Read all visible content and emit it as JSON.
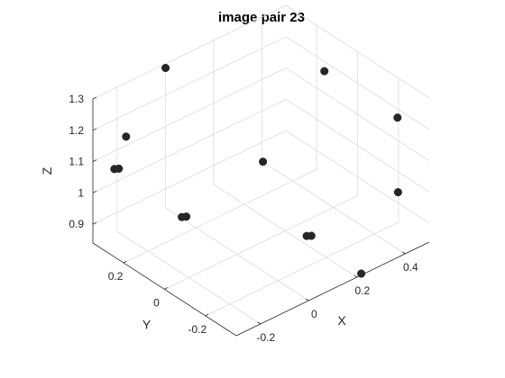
{
  "chart_data": {
    "type": "scatter",
    "title": "image pair 23",
    "xlabel": "X",
    "ylabel": "Y",
    "zlabel": "Z",
    "grid": true,
    "projection": "3d",
    "xlim": [
      -0.3,
      0.5
    ],
    "ylim": [
      -0.35,
      0.35
    ],
    "zlim": [
      0.84,
      1.3
    ],
    "xticks": [
      -0.2,
      0,
      0.2,
      0.4
    ],
    "xtick_labels": [
      "-0.2",
      "0",
      "0.2",
      "0.4"
    ],
    "yticks": [
      -0.2,
      0,
      0.2
    ],
    "ytick_labels": [
      "-0.2",
      "0",
      "0.2"
    ],
    "zticks": [
      0.9,
      1,
      1.1,
      1.2,
      1.3
    ],
    "ztick_labels": [
      "0.9",
      "1",
      "1.1",
      "1.2",
      "1.3"
    ],
    "marker_color": "#262626",
    "points": [
      {
        "x": -0.288,
        "y": 0.202,
        "z": 1.238
      },
      {
        "x": 0.5,
        "y": -0.195,
        "z": 1.172
      },
      {
        "x": 0.364,
        "y": 0.002,
        "z": 1.288
      },
      {
        "x": 0.003,
        "y": 0.352,
        "z": 1.285
      },
      {
        "x": -0.205,
        "y": 0.357,
        "z": 1.038
      },
      {
        "x": -0.193,
        "y": 0.349,
        "z": 1.038
      },
      {
        "x": 0.208,
        "y": 0.118,
        "z": 1.008
      },
      {
        "x": -0.226,
        "y": 0.003,
        "z": 1.042
      },
      {
        "x": -0.215,
        "y": -0.006,
        "z": 1.043
      },
      {
        "x": 0.368,
        "y": -0.353,
        "z": 1.05
      },
      {
        "x": -0.003,
        "y": -0.344,
        "z": 1.045
      },
      {
        "x": 0.009,
        "y": -0.353,
        "z": 1.045
      },
      {
        "x": 0.219,
        "y": -0.349,
        "z": 0.844
      }
    ]
  }
}
